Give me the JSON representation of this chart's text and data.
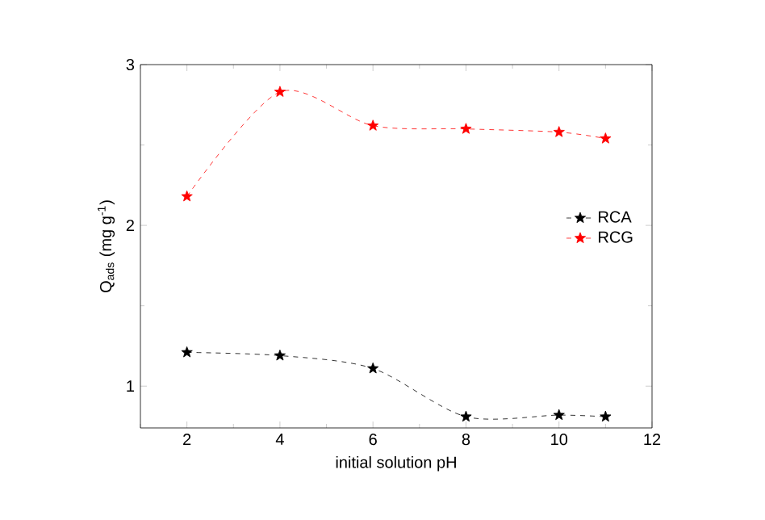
{
  "chart_data": {
    "type": "line",
    "xlabel": "initial solution pH",
    "ylabel": "Q$_{ads}$ (mg g$^{-1}$)",
    "x": [
      2,
      4,
      6,
      8,
      10,
      11
    ],
    "series": [
      {
        "name": "RCA",
        "color": "#000000",
        "values": [
          1.21,
          1.19,
          1.11,
          0.81,
          0.82,
          0.81
        ]
      },
      {
        "name": "RCG",
        "color": "#ff0000",
        "values": [
          2.18,
          2.83,
          2.62,
          2.6,
          2.58,
          2.54
        ]
      }
    ],
    "xlim": [
      1,
      12
    ],
    "ylim": [
      0.74,
      3
    ],
    "xticks": [
      {
        "value": 1,
        "label": null
      },
      2,
      {
        "value": 3,
        "label": null
      },
      4,
      {
        "value": 5,
        "label": null
      },
      6,
      {
        "value": 7,
        "label": null
      },
      8,
      {
        "value": 9,
        "label": null
      },
      10,
      {
        "value": 11,
        "label": null
      },
      12
    ],
    "yticks": [
      1,
      {
        "value": 1.5,
        "label": null
      },
      2,
      {
        "value": 2.5,
        "label": null
      },
      3
    ],
    "marker": "star",
    "line_style": "dashed",
    "legend": "right",
    "grid": false
  }
}
